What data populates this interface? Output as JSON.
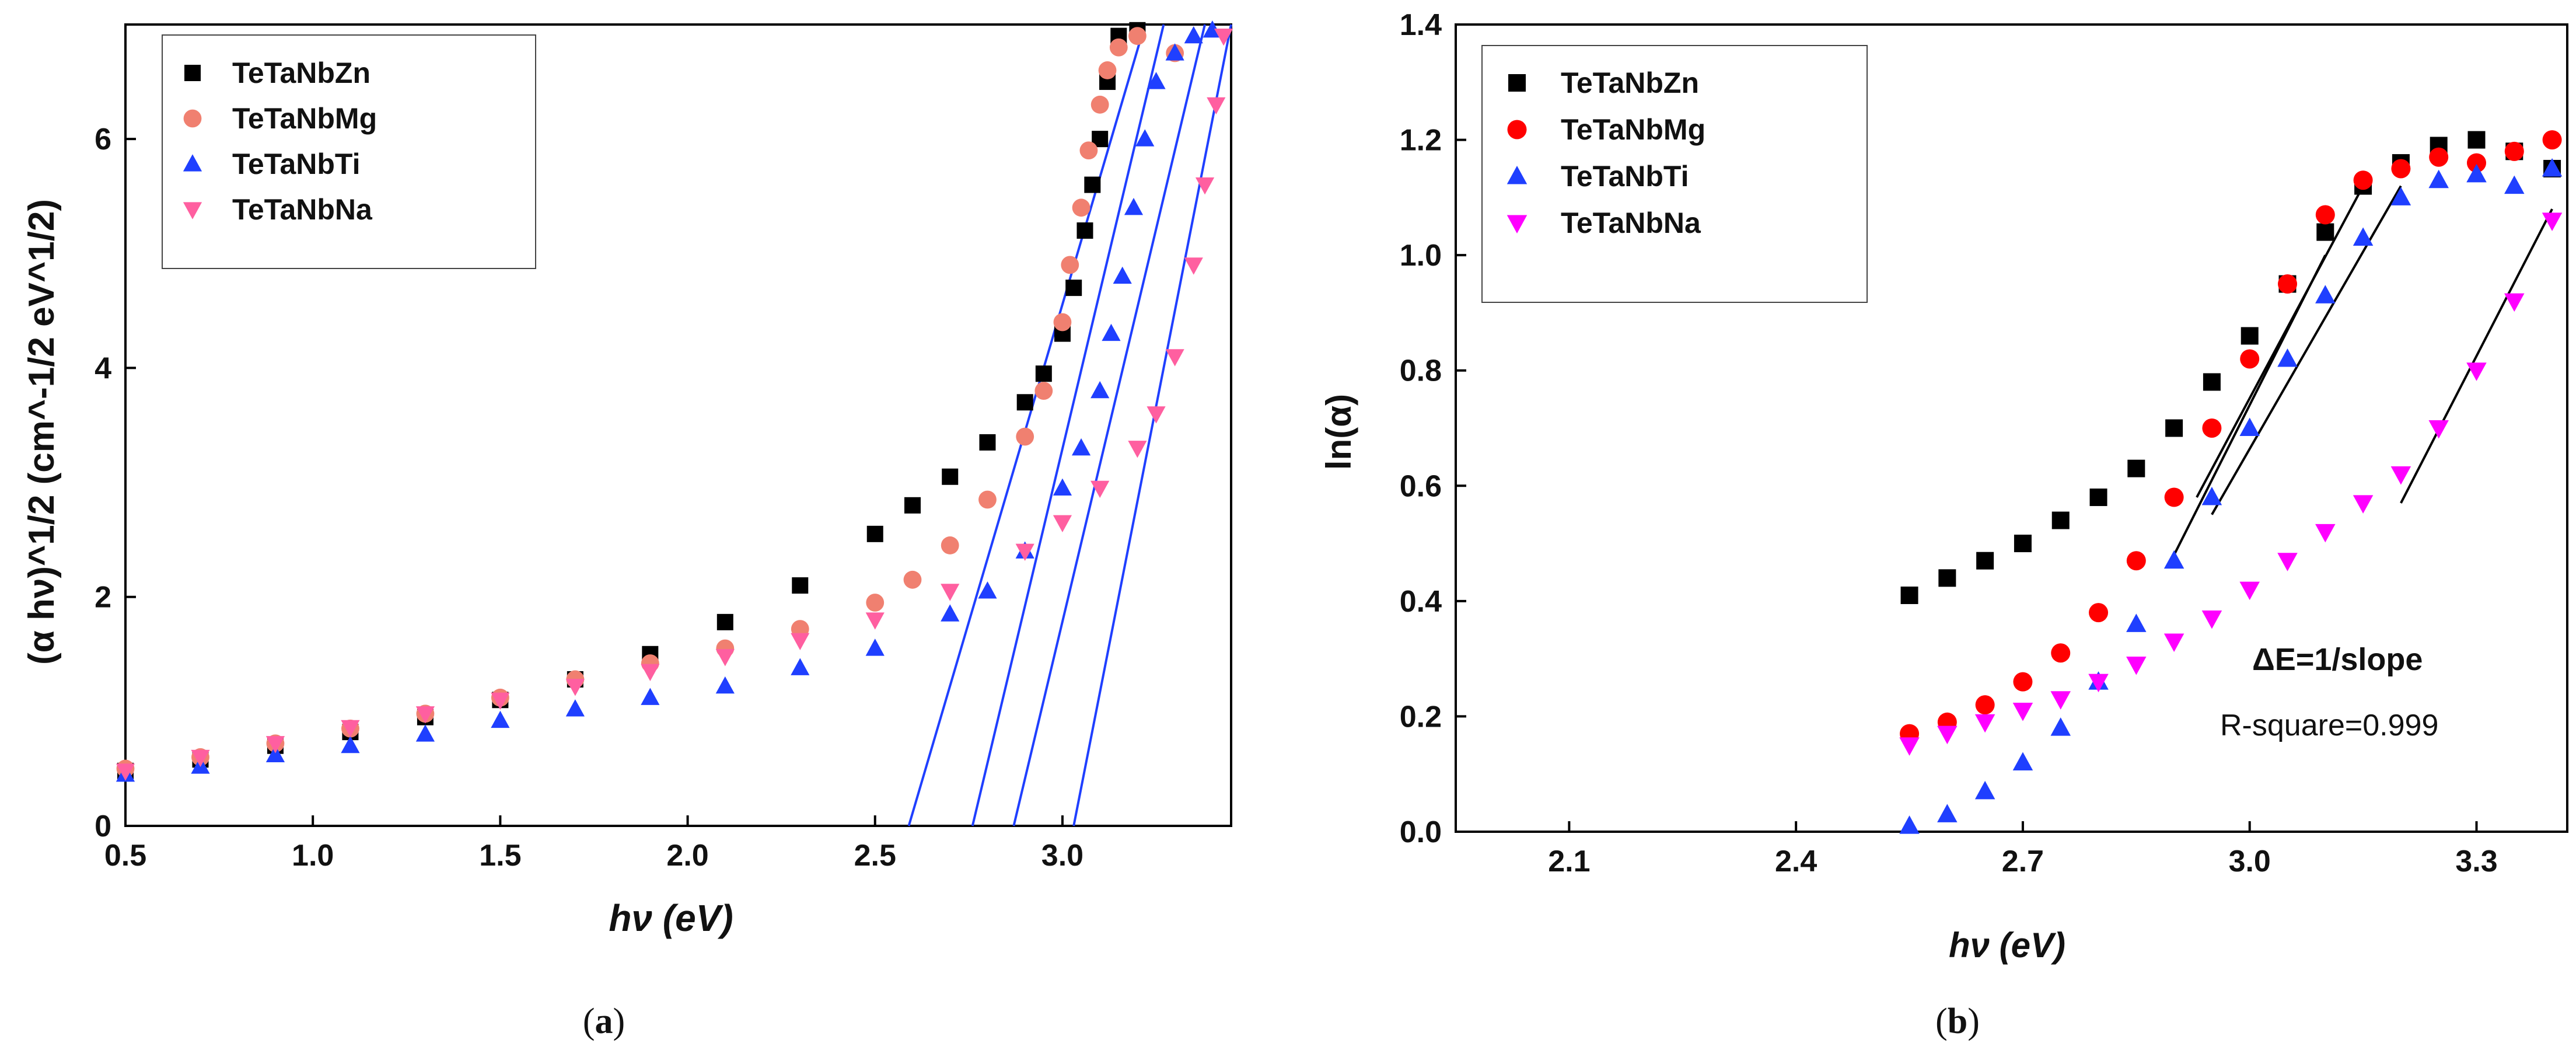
{
  "chart_data": [
    {
      "id": "a",
      "type": "scatter",
      "caption": "a",
      "xlabel": "hν (eV)",
      "ylabel": "(α hν)^1/2 (cm^-1/2 eV^1/2)",
      "xlim": [
        0.5,
        3.45
      ],
      "ylim": [
        0,
        7
      ],
      "xticks": [
        0.5,
        1.0,
        1.5,
        2.0,
        2.5,
        3.0
      ],
      "xtick_labels": [
        "0.5",
        "1.0",
        "1.5",
        "2.0",
        "2.5",
        "3.0"
      ],
      "yticks": [
        0,
        2,
        4,
        6
      ],
      "ytick_labels": [
        "0",
        "2",
        "4",
        "6"
      ],
      "legend_position": "top-left",
      "series": [
        {
          "name": "TeTaNbZn",
          "color": "#000000",
          "marker": "square",
          "points": [
            [
              0.5,
              0.48
            ],
            [
              0.7,
              0.58
            ],
            [
              0.9,
              0.7
            ],
            [
              1.1,
              0.82
            ],
            [
              1.3,
              0.95
            ],
            [
              1.5,
              1.1
            ],
            [
              1.7,
              1.28
            ],
            [
              1.9,
              1.5
            ],
            [
              2.1,
              1.78
            ],
            [
              2.3,
              2.1
            ],
            [
              2.5,
              2.55
            ],
            [
              2.6,
              2.8
            ],
            [
              2.7,
              3.05
            ],
            [
              2.8,
              3.35
            ],
            [
              2.9,
              3.7
            ],
            [
              2.95,
              3.95
            ],
            [
              3.0,
              4.3
            ],
            [
              3.03,
              4.7
            ],
            [
              3.06,
              5.2
            ],
            [
              3.08,
              5.6
            ],
            [
              3.1,
              6.0
            ],
            [
              3.12,
              6.5
            ],
            [
              3.15,
              6.9
            ],
            [
              3.2,
              6.95
            ]
          ]
        },
        {
          "name": "TeTaNbMg",
          "color": "#F08070",
          "marker": "circle",
          "points": [
            [
              0.5,
              0.5
            ],
            [
              0.7,
              0.6
            ],
            [
              0.9,
              0.72
            ],
            [
              1.1,
              0.85
            ],
            [
              1.3,
              0.98
            ],
            [
              1.5,
              1.12
            ],
            [
              1.7,
              1.28
            ],
            [
              1.9,
              1.42
            ],
            [
              2.1,
              1.55
            ],
            [
              2.3,
              1.72
            ],
            [
              2.5,
              1.95
            ],
            [
              2.6,
              2.15
            ],
            [
              2.7,
              2.45
            ],
            [
              2.8,
              2.85
            ],
            [
              2.9,
              3.4
            ],
            [
              2.95,
              3.8
            ],
            [
              3.0,
              4.4
            ],
            [
              3.02,
              4.9
            ],
            [
              3.05,
              5.4
            ],
            [
              3.07,
              5.9
            ],
            [
              3.1,
              6.3
            ],
            [
              3.12,
              6.6
            ],
            [
              3.15,
              6.8
            ],
            [
              3.2,
              6.9
            ],
            [
              3.3,
              6.75
            ]
          ]
        },
        {
          "name": "TeTaNbTi",
          "color": "#1F3FFF",
          "marker": "triangle-up",
          "points": [
            [
              0.5,
              0.45
            ],
            [
              0.7,
              0.52
            ],
            [
              0.9,
              0.62
            ],
            [
              1.1,
              0.7
            ],
            [
              1.3,
              0.8
            ],
            [
              1.5,
              0.92
            ],
            [
              1.7,
              1.02
            ],
            [
              1.9,
              1.12
            ],
            [
              2.1,
              1.22
            ],
            [
              2.3,
              1.38
            ],
            [
              2.5,
              1.55
            ],
            [
              2.7,
              1.85
            ],
            [
              2.8,
              2.05
            ],
            [
              2.9,
              2.4
            ],
            [
              3.0,
              2.95
            ],
            [
              3.05,
              3.3
            ],
            [
              3.1,
              3.8
            ],
            [
              3.13,
              4.3
            ],
            [
              3.16,
              4.8
            ],
            [
              3.19,
              5.4
            ],
            [
              3.22,
              6.0
            ],
            [
              3.25,
              6.5
            ],
            [
              3.3,
              6.75
            ],
            [
              3.35,
              6.9
            ],
            [
              3.4,
              6.95
            ]
          ]
        },
        {
          "name": "TeTaNbNa",
          "color": "#FF5FA0",
          "marker": "triangle-down",
          "points": [
            [
              0.5,
              0.48
            ],
            [
              0.7,
              0.6
            ],
            [
              0.9,
              0.72
            ],
            [
              1.1,
              0.86
            ],
            [
              1.3,
              0.98
            ],
            [
              1.5,
              1.1
            ],
            [
              1.7,
              1.22
            ],
            [
              1.9,
              1.35
            ],
            [
              2.1,
              1.48
            ],
            [
              2.3,
              1.62
            ],
            [
              2.5,
              1.8
            ],
            [
              2.7,
              2.05
            ],
            [
              2.9,
              2.4
            ],
            [
              3.0,
              2.65
            ],
            [
              3.1,
              2.95
            ],
            [
              3.2,
              3.3
            ],
            [
              3.25,
              3.6
            ],
            [
              3.3,
              4.1
            ],
            [
              3.35,
              4.9
            ],
            [
              3.38,
              5.6
            ],
            [
              3.41,
              6.3
            ],
            [
              3.43,
              6.9
            ]
          ]
        }
      ],
      "fit_lines": [
        {
          "color": "#1F3FFF",
          "points": [
            [
              2.59,
              0
            ],
            [
              3.22,
              7
            ]
          ]
        },
        {
          "color": "#1F3FFF",
          "points": [
            [
              2.76,
              0
            ],
            [
              3.27,
              7
            ]
          ]
        },
        {
          "color": "#1F3FFF",
          "points": [
            [
              2.87,
              0
            ],
            [
              3.38,
              7
            ]
          ]
        },
        {
          "color": "#1F3FFF",
          "points": [
            [
              3.03,
              0
            ],
            [
              3.45,
              7
            ]
          ]
        }
      ]
    },
    {
      "id": "b",
      "type": "scatter",
      "caption": "b",
      "xlabel": "hν (eV)",
      "ylabel": "ln(α)",
      "xlim": [
        1.95,
        3.42
      ],
      "ylim": [
        0,
        1.4
      ],
      "xticks": [
        2.1,
        2.4,
        2.7,
        3.0,
        3.3
      ],
      "xtick_labels": [
        "2.1",
        "2.4",
        "2.7",
        "3.0",
        "3.3"
      ],
      "yticks": [
        0,
        0.2,
        0.4,
        0.6,
        0.8,
        1.0,
        1.2,
        1.4
      ],
      "ytick_labels": [
        "0.0",
        "0.2",
        "0.4",
        "0.6",
        "0.8",
        "1.0",
        "1.2",
        "1.4"
      ],
      "legend_position": "top-left",
      "annotations": [
        "ΔE=1/slope",
        "R-square=0.999"
      ],
      "series": [
        {
          "name": "TeTaNbZn",
          "color": "#000000",
          "marker": "square",
          "points": [
            [
              2.55,
              0.41
            ],
            [
              2.6,
              0.44
            ],
            [
              2.65,
              0.47
            ],
            [
              2.7,
              0.5
            ],
            [
              2.75,
              0.54
            ],
            [
              2.8,
              0.58
            ],
            [
              2.85,
              0.63
            ],
            [
              2.9,
              0.7
            ],
            [
              2.95,
              0.78
            ],
            [
              3.0,
              0.86
            ],
            [
              3.05,
              0.95
            ],
            [
              3.1,
              1.04
            ],
            [
              3.15,
              1.12
            ],
            [
              3.2,
              1.16
            ],
            [
              3.25,
              1.19
            ],
            [
              3.3,
              1.2
            ],
            [
              3.35,
              1.18
            ],
            [
              3.4,
              1.15
            ]
          ]
        },
        {
          "name": "TeTaNbMg",
          "color": "#FF0000",
          "marker": "circle",
          "points": [
            [
              2.55,
              0.17
            ],
            [
              2.6,
              0.19
            ],
            [
              2.65,
              0.22
            ],
            [
              2.7,
              0.26
            ],
            [
              2.75,
              0.31
            ],
            [
              2.8,
              0.38
            ],
            [
              2.85,
              0.47
            ],
            [
              2.9,
              0.58
            ],
            [
              2.95,
              0.7
            ],
            [
              3.0,
              0.82
            ],
            [
              3.05,
              0.95
            ],
            [
              3.1,
              1.07
            ],
            [
              3.15,
              1.13
            ],
            [
              3.2,
              1.15
            ],
            [
              3.25,
              1.17
            ],
            [
              3.3,
              1.16
            ],
            [
              3.35,
              1.18
            ],
            [
              3.4,
              1.2
            ]
          ]
        },
        {
          "name": "TeTaNbTi",
          "color": "#1F3FFF",
          "marker": "triangle-up",
          "points": [
            [
              2.55,
              0.01
            ],
            [
              2.6,
              0.03
            ],
            [
              2.65,
              0.07
            ],
            [
              2.7,
              0.12
            ],
            [
              2.75,
              0.18
            ],
            [
              2.8,
              0.26
            ],
            [
              2.85,
              0.36
            ],
            [
              2.9,
              0.47
            ],
            [
              2.95,
              0.58
            ],
            [
              3.0,
              0.7
            ],
            [
              3.05,
              0.82
            ],
            [
              3.1,
              0.93
            ],
            [
              3.15,
              1.03
            ],
            [
              3.2,
              1.1
            ],
            [
              3.25,
              1.13
            ],
            [
              3.3,
              1.14
            ],
            [
              3.35,
              1.12
            ],
            [
              3.4,
              1.15
            ]
          ]
        },
        {
          "name": "TeTaNbNa",
          "color": "#FF00FF",
          "marker": "triangle-down",
          "points": [
            [
              2.55,
              0.15
            ],
            [
              2.6,
              0.17
            ],
            [
              2.65,
              0.19
            ],
            [
              2.7,
              0.21
            ],
            [
              2.75,
              0.23
            ],
            [
              2.8,
              0.26
            ],
            [
              2.85,
              0.29
            ],
            [
              2.9,
              0.33
            ],
            [
              2.95,
              0.37
            ],
            [
              3.0,
              0.42
            ],
            [
              3.05,
              0.47
            ],
            [
              3.1,
              0.52
            ],
            [
              3.15,
              0.57
            ],
            [
              3.2,
              0.62
            ],
            [
              3.25,
              0.7
            ],
            [
              3.3,
              0.8
            ],
            [
              3.35,
              0.92
            ],
            [
              3.4,
              1.06
            ]
          ]
        }
      ],
      "fit_lines": [
        {
          "color": "#000000",
          "points": [
            [
              2.93,
              0.58
            ],
            [
              3.15,
              1.12
            ]
          ]
        },
        {
          "color": "#000000",
          "points": [
            [
              2.9,
              0.48
            ],
            [
              3.1,
              1.0
            ]
          ]
        },
        {
          "color": "#000000",
          "points": [
            [
              2.95,
              0.55
            ],
            [
              3.2,
              1.12
            ]
          ]
        },
        {
          "color": "#000000",
          "points": [
            [
              3.2,
              0.57
            ],
            [
              3.4,
              1.08
            ]
          ]
        }
      ]
    }
  ]
}
